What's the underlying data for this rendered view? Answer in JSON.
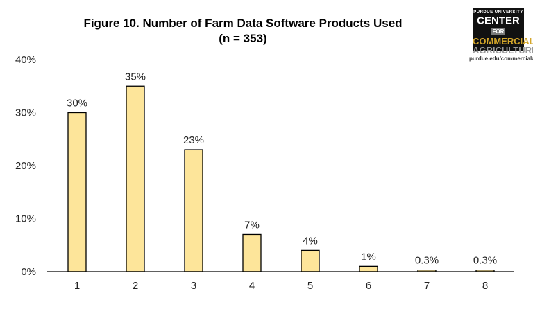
{
  "chart_data": {
    "type": "bar",
    "title": "Figure 10. Number of Farm Data Software Products Used",
    "subtitle": "(n = 353)",
    "categories": [
      "1",
      "2",
      "3",
      "4",
      "5",
      "6",
      "7",
      "8"
    ],
    "values": [
      30,
      35,
      23,
      7,
      4,
      1,
      0.3,
      0.3
    ],
    "data_labels": [
      "30%",
      "35%",
      "23%",
      "7%",
      "4%",
      "1%",
      "0.3%",
      "0.3%"
    ],
    "ylim": [
      0,
      40
    ],
    "yticks": [
      "0%",
      "10%",
      "20%",
      "30%",
      "40%"
    ],
    "grid": false,
    "bar_color": "#fde59a",
    "bar_edge_color": "#000000"
  },
  "logo": {
    "line1": "PURDUE UNIVERSITY",
    "line2": "CENTER",
    "line2b": "FOR",
    "line3": "COMMERCIAL",
    "line4": "AGRICULTURE",
    "url": "purdue.edu/commercialag"
  }
}
